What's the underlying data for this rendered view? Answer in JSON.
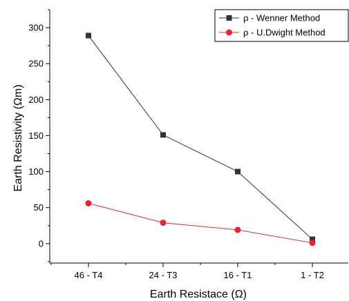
{
  "chart_data": {
    "type": "line",
    "categories": [
      "46 - T4",
      "24 - T3",
      "16 - T1",
      "1 - T2"
    ],
    "series": [
      {
        "name": "ρ - Wenner Method",
        "values": [
          289,
          151,
          100,
          6
        ],
        "color": "#333333",
        "marker": "square"
      },
      {
        "name": "ρ - U.Dwight Method",
        "values": [
          56,
          29,
          19,
          1
        ],
        "color": "#e8242c",
        "marker": "circle"
      }
    ],
    "xlabel": "Earth Resistace (Ω)",
    "ylabel": "Earth Resistivity  (Ωm)",
    "ylim": [
      -27,
      325
    ],
    "yticks": [
      0,
      50,
      100,
      150,
      200,
      250,
      300
    ],
    "legend_position": "top-right",
    "grid": false
  }
}
